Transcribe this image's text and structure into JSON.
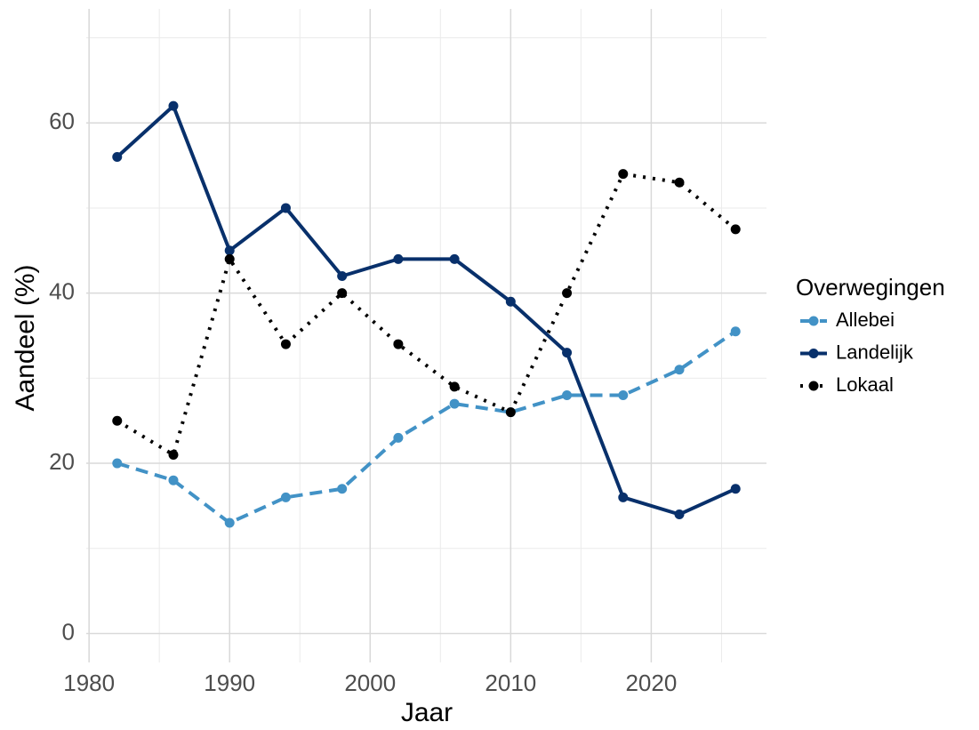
{
  "chart_data": {
    "type": "line",
    "x_label": "Jaar",
    "y_label": "Aandeel (%)",
    "legend_title": "Overwegingen",
    "legend_position": "right",
    "x": [
      1982,
      1986,
      1990,
      1994,
      1998,
      2002,
      2006,
      2010,
      2014,
      2018,
      2022,
      2026
    ],
    "series": [
      {
        "name": "Allebei",
        "color": "#4292c6",
        "linestyle": "dashed",
        "values": [
          20,
          18,
          13,
          16,
          17,
          23,
          27,
          26,
          28,
          28,
          31,
          35.5
        ]
      },
      {
        "name": "Landelijk",
        "color": "#08306b",
        "linestyle": "solid",
        "values": [
          56,
          62,
          45,
          50,
          42,
          44,
          44,
          39,
          33,
          16,
          14,
          17
        ]
      },
      {
        "name": "Lokaal",
        "color": "#000000",
        "linestyle": "dotted",
        "values": [
          25,
          21,
          44,
          34,
          40,
          34,
          29,
          26,
          40,
          54,
          53,
          47.5
        ]
      }
    ],
    "xlim": [
      1979.8,
      2028.2
    ],
    "xticks": [
      1980,
      1990,
      2000,
      2010,
      2020
    ],
    "xminorticks": [
      1985,
      1995,
      2005,
      2015,
      2025
    ],
    "ylim": [
      -3.4,
      73.4
    ],
    "yticks": [
      0,
      20,
      40,
      60
    ],
    "yminorticks": [
      10,
      30,
      50,
      70
    ],
    "grid": true
  }
}
